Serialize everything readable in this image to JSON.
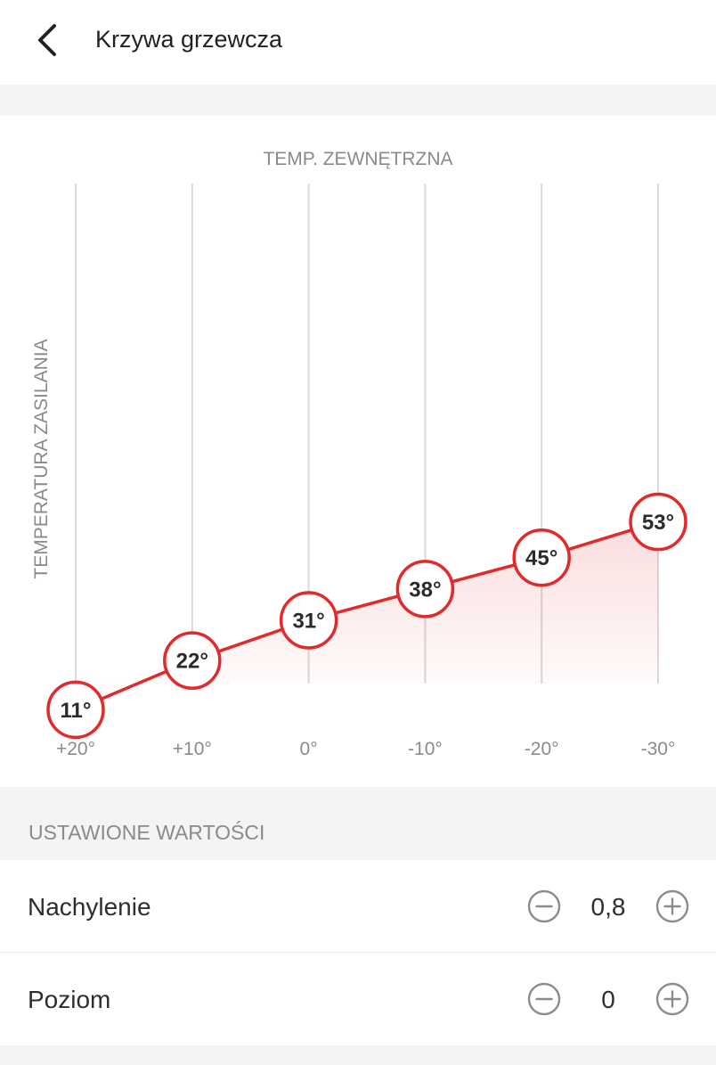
{
  "header": {
    "title": "Krzywa grzewcza",
    "back_icon": "chevron-left-icon"
  },
  "colors": {
    "accent": "#e32a2a",
    "grid": "#d9d9d9",
    "muted_text": "#8a8a8a",
    "background": "#f4f4f4"
  },
  "chart_data": {
    "type": "line",
    "title": "TEMP. ZEWNĘTRZNA",
    "xlabel": "TEMP. ZEWNĘTRZNA",
    "ylabel": "TEMPERATURA ZASILANIA",
    "categories": [
      "+20°",
      "+10°",
      "0°",
      "-10°",
      "-20°",
      "-30°"
    ],
    "x": [
      20,
      10,
      0,
      -10,
      -20,
      -30
    ],
    "values": [
      11,
      22,
      31,
      38,
      45,
      53
    ],
    "point_labels": [
      "11°",
      "22°",
      "31°",
      "38°",
      "45°",
      "53°"
    ],
    "ylim": [
      0,
      80
    ],
    "grid": "vertical",
    "area_fill": true
  },
  "settings": {
    "section_title": "USTAWIONE WARTOŚCI",
    "rows": [
      {
        "label": "Nachylenie",
        "value": "0,8",
        "decrement_icon": "minus-circle-icon",
        "increment_icon": "plus-circle-icon"
      },
      {
        "label": "Poziom",
        "value": "0",
        "decrement_icon": "minus-circle-icon",
        "increment_icon": "plus-circle-icon"
      }
    ]
  }
}
